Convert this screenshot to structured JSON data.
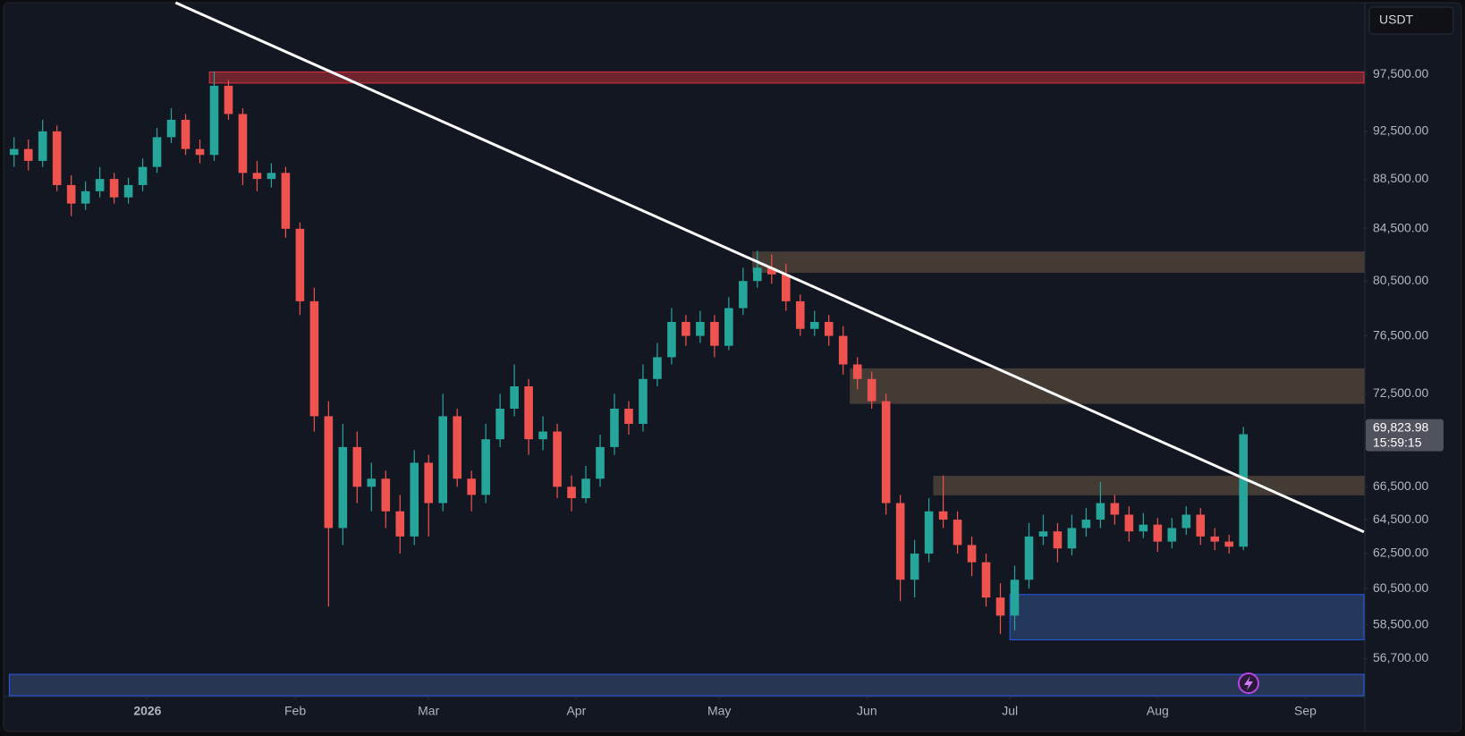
{
  "currency": "USDT",
  "chart_data": {
    "type": "candlestick",
    "log_scale": true,
    "up_color": "#26a69a",
    "down_color": "#ef5350",
    "xlim": [
      -1,
      283.3
    ],
    "ylim": [
      54770,
      104500
    ],
    "xticks": [
      {
        "value": 28,
        "label": "2026"
      },
      {
        "value": 59,
        "label": "Feb"
      },
      {
        "value": 87,
        "label": "Mar"
      },
      {
        "value": 118,
        "label": "Apr"
      },
      {
        "value": 148,
        "label": "May"
      },
      {
        "value": 179,
        "label": "Jun"
      },
      {
        "value": 209,
        "label": "Jul"
      },
      {
        "value": 240,
        "label": "Aug"
      },
      {
        "value": 271,
        "label": "Sep"
      }
    ],
    "yticks": [
      {
        "value": 97500,
        "label": "97,500.00"
      },
      {
        "value": 92500,
        "label": "92,500.00"
      },
      {
        "value": 88500,
        "label": "88,500.00"
      },
      {
        "value": 84500,
        "label": "84,500.00"
      },
      {
        "value": 80500,
        "label": "80,500.00"
      },
      {
        "value": 76500,
        "label": "76,500.00"
      },
      {
        "value": 72500,
        "label": "72,500.00"
      },
      {
        "value": 66500,
        "label": "66,500.00"
      },
      {
        "value": 64500,
        "label": "64,500.00"
      },
      {
        "value": 62500,
        "label": "62,500.00"
      },
      {
        "value": 60500,
        "label": "60,500.00"
      },
      {
        "value": 58500,
        "label": "58,500.00"
      },
      {
        "value": 56700,
        "label": "56,700.00"
      }
    ],
    "x": [
      0,
      3,
      6,
      9,
      12,
      15,
      18,
      21,
      24,
      27,
      30,
      33,
      36,
      39,
      42,
      45,
      48,
      51,
      54,
      57,
      60,
      63,
      66,
      69,
      72,
      75,
      78,
      81,
      84,
      87,
      90,
      93,
      96,
      99,
      102,
      105,
      108,
      111,
      114,
      117,
      120,
      123,
      126,
      129,
      132,
      135,
      138,
      141,
      144,
      147,
      150,
      153,
      156,
      159,
      162,
      165,
      168,
      171,
      174,
      177,
      180,
      183,
      186,
      189,
      192,
      195,
      198,
      201,
      204,
      207,
      210,
      213,
      216,
      219,
      222,
      225,
      228,
      231,
      234,
      237,
      240,
      243,
      246,
      249,
      252,
      255,
      258
    ],
    "ohlc": [
      [
        90500,
        92000,
        89500,
        91000
      ],
      [
        91000,
        91800,
        89200,
        90000
      ],
      [
        90000,
        93500,
        89500,
        92500
      ],
      [
        92500,
        93000,
        87500,
        88000
      ],
      [
        88000,
        88800,
        85500,
        86500
      ],
      [
        86500,
        88300,
        86000,
        87500
      ],
      [
        87500,
        89500,
        87000,
        88500
      ],
      [
        88500,
        89000,
        86500,
        87000
      ],
      [
        87000,
        88600,
        86500,
        88000
      ],
      [
        88000,
        90200,
        87500,
        89500
      ],
      [
        89500,
        92800,
        89000,
        92000
      ],
      [
        92000,
        94500,
        91500,
        93500
      ],
      [
        93500,
        94000,
        90500,
        91000
      ],
      [
        91000,
        91800,
        89800,
        90500
      ],
      [
        90500,
        97800,
        90000,
        96500
      ],
      [
        96500,
        97000,
        93500,
        94000
      ],
      [
        94000,
        94500,
        88000,
        89000
      ],
      [
        89000,
        90000,
        87500,
        88500
      ],
      [
        88500,
        89800,
        87800,
        89000
      ],
      [
        89000,
        89500,
        83800,
        84500
      ],
      [
        84500,
        85000,
        78000,
        79000
      ],
      [
        79000,
        80000,
        70000,
        71000
      ],
      [
        71000,
        72000,
        59500,
        64000
      ],
      [
        64000,
        70500,
        63000,
        69000
      ],
      [
        69000,
        70000,
        65500,
        66500
      ],
      [
        66500,
        68000,
        65000,
        67000
      ],
      [
        67000,
        67500,
        64000,
        65000
      ],
      [
        65000,
        66000,
        62500,
        63500
      ],
      [
        63500,
        68800,
        63000,
        68000
      ],
      [
        68000,
        68500,
        63500,
        65500
      ],
      [
        65500,
        72500,
        65000,
        71000
      ],
      [
        71000,
        71500,
        66500,
        67000
      ],
      [
        67000,
        67500,
        65000,
        66000
      ],
      [
        66000,
        70500,
        65500,
        69500
      ],
      [
        69500,
        72500,
        69000,
        71500
      ],
      [
        71500,
        74500,
        71000,
        73000
      ],
      [
        73000,
        73500,
        68500,
        69500
      ],
      [
        69500,
        71000,
        68800,
        70000
      ],
      [
        70000,
        70500,
        65800,
        66500
      ],
      [
        66500,
        67200,
        65000,
        65800
      ],
      [
        65800,
        67800,
        65500,
        67000
      ],
      [
        67000,
        69800,
        66500,
        69000
      ],
      [
        69000,
        72500,
        68500,
        71500
      ],
      [
        71500,
        72000,
        69800,
        70500
      ],
      [
        70500,
        74500,
        70000,
        73500
      ],
      [
        73500,
        76000,
        73000,
        75000
      ],
      [
        75000,
        78500,
        74500,
        77500
      ],
      [
        77500,
        78000,
        75800,
        76500
      ],
      [
        76500,
        78300,
        76000,
        77500
      ],
      [
        77500,
        78000,
        75000,
        75800
      ],
      [
        75800,
        79300,
        75500,
        78500
      ],
      [
        78500,
        81500,
        78000,
        80500
      ],
      [
        80500,
        82800,
        80000,
        81500
      ],
      [
        81500,
        82500,
        80300,
        81000
      ],
      [
        81000,
        81800,
        78300,
        79000
      ],
      [
        79000,
        79500,
        76500,
        77000
      ],
      [
        77000,
        78300,
        76500,
        77500
      ],
      [
        77500,
        78000,
        75800,
        76500
      ],
      [
        76500,
        77200,
        73800,
        74500
      ],
      [
        74500,
        75000,
        72800,
        73500
      ],
      [
        73500,
        74000,
        71500,
        72000
      ],
      [
        72000,
        72500,
        64800,
        65500
      ],
      [
        65500,
        66000,
        59800,
        61000
      ],
      [
        61000,
        63300,
        60000,
        62500
      ],
      [
        62500,
        65800,
        62000,
        65000
      ],
      [
        65000,
        67200,
        64000,
        64500
      ],
      [
        64500,
        65000,
        62500,
        63000
      ],
      [
        63000,
        63500,
        61200,
        62000
      ],
      [
        62000,
        62500,
        59500,
        60000
      ],
      [
        60000,
        60800,
        58000,
        59000
      ],
      [
        59000,
        61800,
        58200,
        61000
      ],
      [
        61000,
        64300,
        60500,
        63500
      ],
      [
        63500,
        64800,
        63000,
        63800
      ],
      [
        63800,
        64300,
        62000,
        62800
      ],
      [
        62800,
        64800,
        62400,
        64000
      ],
      [
        64000,
        65200,
        63500,
        64500
      ],
      [
        64500,
        66800,
        64000,
        65500
      ],
      [
        65500,
        66000,
        64200,
        64800
      ],
      [
        64800,
        65300,
        63200,
        63800
      ],
      [
        63800,
        64900,
        63400,
        64200
      ],
      [
        64200,
        64600,
        62600,
        63200
      ],
      [
        63200,
        64600,
        62800,
        64000
      ],
      [
        64000,
        65300,
        63600,
        64800
      ],
      [
        64800,
        65200,
        63000,
        63500
      ],
      [
        63500,
        64000,
        62700,
        63200
      ],
      [
        63200,
        63600,
        62500,
        62900
      ],
      [
        62900,
        70300,
        62700,
        69823.98
      ]
    ],
    "zones": [
      {
        "start": 41,
        "top": 97750,
        "bottom": 96740,
        "color": "#7a2630",
        "border": "#f23645"
      },
      {
        "start": 155,
        "top": 82700,
        "bottom": 81150,
        "color": "#4a3f38",
        "border": "#4a3f38"
      },
      {
        "start": 175.5,
        "top": 74200,
        "bottom": 71850,
        "color": "#4a3f38",
        "border": "#4a3f38"
      },
      {
        "start": 193,
        "top": 67150,
        "bottom": 66000,
        "color": "#4a3f38",
        "border": "#4a3f38"
      },
      {
        "start": 209,
        "top": 60170,
        "bottom": 57690,
        "color": "#263c64",
        "border": "#2962ff"
      },
      {
        "start": -1,
        "top": 55870,
        "bottom": 54770,
        "color": "#2b3a5a",
        "border": "#2962ff"
      }
    ],
    "trendline": {
      "x": [
        33.9,
        283.3
      ],
      "y": [
        104240,
        63770
      ],
      "color": "#ffffff"
    },
    "last_price": {
      "value": 69823.98,
      "label": "69,823.98",
      "countdown": "15:59:15"
    }
  }
}
